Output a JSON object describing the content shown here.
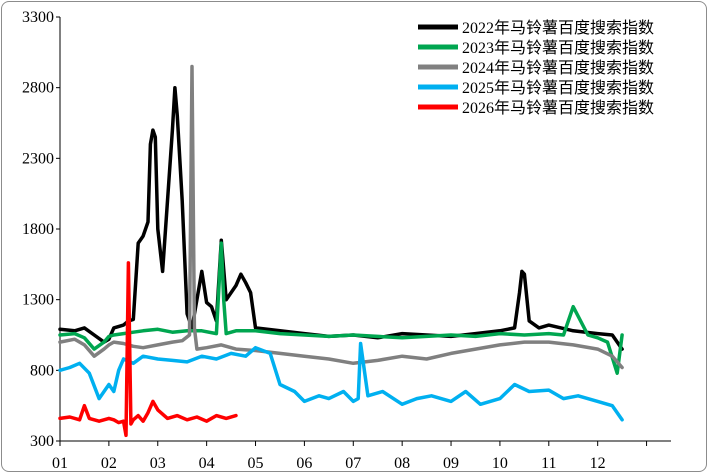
{
  "chart_data": {
    "type": "line",
    "title": "",
    "xlabel": "",
    "ylabel": "",
    "ylim": [
      300,
      3300
    ],
    "xlim": [
      1,
      13.5
    ],
    "y_ticks": [
      "300",
      "800",
      "1300",
      "1800",
      "2300",
      "2800",
      "3300"
    ],
    "x_ticks": [
      "01",
      "02",
      "03",
      "04",
      "05",
      "06",
      "07",
      "08",
      "09",
      "10",
      "11",
      "12"
    ],
    "legend_position": "top-right",
    "grid": false,
    "series": [
      {
        "name": "2022年马铃薯百度搜索指数",
        "color": "#000000",
        "x": [
          1.0,
          1.3,
          1.5,
          1.7,
          1.9,
          2.0,
          2.1,
          2.3,
          2.4,
          2.5,
          2.6,
          2.7,
          2.8,
          2.85,
          2.9,
          2.95,
          3.0,
          3.1,
          3.2,
          3.3,
          3.35,
          3.4,
          3.5,
          3.6,
          3.7,
          3.8,
          3.9,
          4.0,
          4.1,
          4.2,
          4.3,
          4.4,
          4.5,
          4.6,
          4.7,
          4.8,
          4.9,
          5.0,
          5.5,
          6.0,
          6.5,
          7.0,
          7.5,
          8.0,
          8.5,
          9.0,
          9.5,
          10.0,
          10.3,
          10.4,
          10.45,
          10.5,
          10.6,
          10.8,
          11.0,
          11.5,
          12.0,
          12.3,
          12.5
        ],
        "values": [
          1090,
          1080,
          1100,
          1050,
          1000,
          1020,
          1100,
          1120,
          1150,
          1160,
          1700,
          1750,
          1850,
          2400,
          2500,
          2450,
          1800,
          1500,
          2000,
          2500,
          2800,
          2600,
          2000,
          1200,
          1100,
          1300,
          1500,
          1280,
          1250,
          1150,
          1720,
          1300,
          1350,
          1400,
          1480,
          1420,
          1350,
          1100,
          1080,
          1060,
          1040,
          1050,
          1030,
          1060,
          1050,
          1040,
          1060,
          1080,
          1100,
          1350,
          1500,
          1480,
          1150,
          1100,
          1120,
          1080,
          1060,
          1050,
          950
        ]
      },
      {
        "name": "2023年马铃薯百度搜索指数",
        "color": "#00a650",
        "x": [
          1.0,
          1.3,
          1.5,
          1.7,
          1.9,
          2.0,
          2.1,
          2.3,
          2.5,
          2.7,
          3.0,
          3.3,
          3.6,
          3.9,
          4.2,
          4.3,
          4.35,
          4.4,
          4.6,
          5.0,
          5.5,
          6.0,
          6.5,
          7.0,
          7.5,
          8.0,
          8.5,
          9.0,
          9.5,
          10.0,
          10.5,
          11.0,
          11.3,
          11.5,
          11.8,
          12.0,
          12.2,
          12.4,
          12.5
        ],
        "values": [
          1050,
          1060,
          1030,
          950,
          1000,
          1040,
          1050,
          1060,
          1070,
          1080,
          1090,
          1070,
          1080,
          1080,
          1060,
          1700,
          1300,
          1060,
          1080,
          1080,
          1060,
          1050,
          1040,
          1050,
          1040,
          1030,
          1040,
          1050,
          1040,
          1060,
          1050,
          1060,
          1050,
          1250,
          1050,
          1030,
          1000,
          780,
          1050
        ]
      },
      {
        "name": "2024年马铃薯百度搜索指数",
        "color": "#808080",
        "x": [
          1.0,
          1.3,
          1.5,
          1.7,
          1.9,
          2.0,
          2.1,
          2.3,
          2.5,
          2.7,
          3.0,
          3.3,
          3.5,
          3.65,
          3.7,
          3.75,
          3.8,
          4.0,
          4.3,
          4.6,
          5.0,
          5.5,
          6.0,
          6.5,
          7.0,
          7.5,
          8.0,
          8.5,
          9.0,
          9.5,
          10.0,
          10.5,
          11.0,
          11.5,
          12.0,
          12.3,
          12.5
        ],
        "values": [
          1000,
          1020,
          980,
          900,
          950,
          980,
          1000,
          990,
          970,
          960,
          980,
          1000,
          1010,
          1050,
          2950,
          1100,
          950,
          960,
          980,
          950,
          940,
          920,
          900,
          880,
          850,
          870,
          900,
          880,
          920,
          950,
          980,
          1000,
          1000,
          980,
          950,
          900,
          820
        ]
      },
      {
        "name": "2025年马铃薯百度搜索指数",
        "color": "#00b0f0",
        "x": [
          1.0,
          1.2,
          1.4,
          1.6,
          1.8,
          2.0,
          2.1,
          2.2,
          2.3,
          2.5,
          2.7,
          3.0,
          3.3,
          3.6,
          3.9,
          4.2,
          4.5,
          4.8,
          5.0,
          5.3,
          5.5,
          5.8,
          6.0,
          6.3,
          6.5,
          6.8,
          7.0,
          7.1,
          7.15,
          7.3,
          7.6,
          8.0,
          8.3,
          8.6,
          9.0,
          9.3,
          9.6,
          10.0,
          10.3,
          10.6,
          11.0,
          11.3,
          11.6,
          12.0,
          12.3,
          12.5
        ],
        "values": [
          800,
          820,
          850,
          780,
          600,
          700,
          650,
          800,
          880,
          850,
          900,
          880,
          870,
          860,
          900,
          880,
          920,
          900,
          960,
          920,
          700,
          650,
          580,
          620,
          600,
          650,
          580,
          600,
          990,
          620,
          650,
          560,
          600,
          620,
          580,
          650,
          560,
          600,
          700,
          650,
          660,
          600,
          620,
          580,
          550,
          450
        ]
      },
      {
        "name": "2026年马铃薯百度搜索指数",
        "color": "#ff0000",
        "x": [
          1.0,
          1.2,
          1.4,
          1.5,
          1.6,
          1.8,
          2.0,
          2.1,
          2.2,
          2.3,
          2.35,
          2.4,
          2.45,
          2.5,
          2.6,
          2.7,
          2.8,
          2.9,
          3.0,
          3.2,
          3.4,
          3.6,
          3.8,
          4.0,
          4.2,
          4.4,
          4.6
        ],
        "values": [
          460,
          470,
          450,
          550,
          460,
          440,
          460,
          450,
          430,
          440,
          340,
          1560,
          420,
          450,
          480,
          440,
          500,
          580,
          520,
          460,
          480,
          450,
          470,
          440,
          480,
          460,
          480
        ]
      }
    ]
  }
}
